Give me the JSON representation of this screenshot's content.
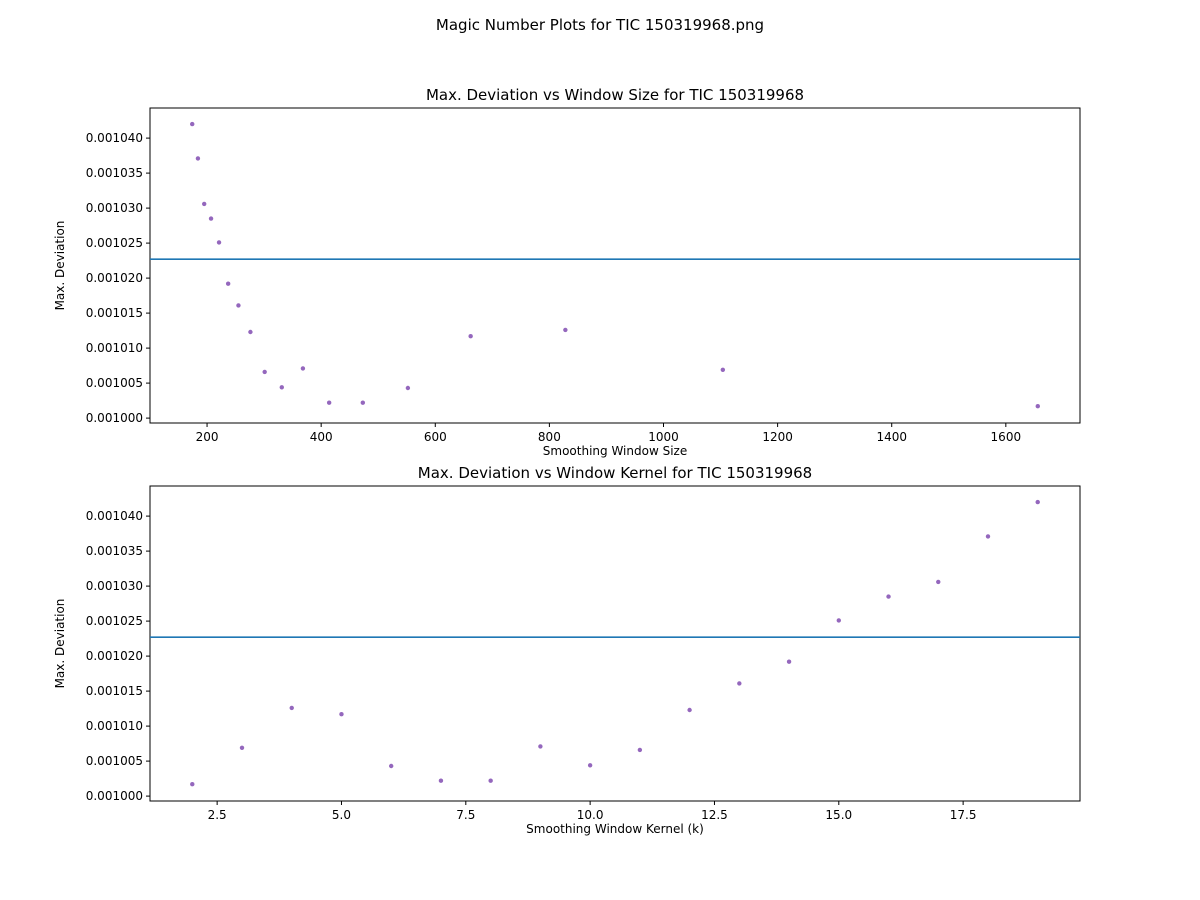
{
  "figure": {
    "suptitle": "Magic Number Plots for TIC 150319968.png"
  },
  "colors": {
    "points": "#9467bd",
    "hline": "#1f77b4",
    "axes": "#000000",
    "background": "#ffffff"
  },
  "chart_data": [
    {
      "type": "scatter",
      "title": "Max. Deviation vs Window Size for TIC 150319968",
      "xlabel": "Smoothing Window Size",
      "ylabel": "Max. Deviation",
      "xlim": [
        100,
        1730
      ],
      "ylim": [
        0.0009993,
        0.0010443
      ],
      "xticks": [
        200,
        400,
        600,
        800,
        1000,
        1200,
        1400,
        1600
      ],
      "xtick_labels": [
        "200",
        "400",
        "600",
        "800",
        "1000",
        "1200",
        "1400",
        "1600"
      ],
      "yticks": [
        0.001,
        0.001005,
        0.00101,
        0.001015,
        0.00102,
        0.001025,
        0.00103,
        0.001035,
        0.00104
      ],
      "ytick_labels": [
        "0.001000",
        "0.001005",
        "0.001010",
        "0.001015",
        "0.001020",
        "0.001025",
        "0.001030",
        "0.001035",
        "0.001040"
      ],
      "grid": false,
      "hline": 0.0010227,
      "points": [
        {
          "x": 174,
          "y": 0.001042
        },
        {
          "x": 184,
          "y": 0.0010371
        },
        {
          "x": 195,
          "y": 0.0010306
        },
        {
          "x": 207,
          "y": 0.0010285
        },
        {
          "x": 221,
          "y": 0.0010251
        },
        {
          "x": 237,
          "y": 0.0010192
        },
        {
          "x": 255,
          "y": 0.0010161
        },
        {
          "x": 276,
          "y": 0.0010123
        },
        {
          "x": 301,
          "y": 0.0010066
        },
        {
          "x": 331,
          "y": 0.0010044
        },
        {
          "x": 368,
          "y": 0.0010071
        },
        {
          "x": 414,
          "y": 0.0010022
        },
        {
          "x": 473,
          "y": 0.0010022
        },
        {
          "x": 552,
          "y": 0.0010043
        },
        {
          "x": 662,
          "y": 0.0010117
        },
        {
          "x": 828,
          "y": 0.0010126
        },
        {
          "x": 1104,
          "y": 0.0010069
        },
        {
          "x": 1656,
          "y": 0.0010017
        }
      ]
    },
    {
      "type": "scatter",
      "title": "Max. Deviation vs Window Kernel for TIC 150319968",
      "xlabel": "Smoothing Window Kernel (k)",
      "ylabel": "Max. Deviation",
      "xlim": [
        1.15,
        19.85
      ],
      "ylim": [
        0.0009993,
        0.0010443
      ],
      "xticks": [
        2.5,
        5.0,
        7.5,
        10.0,
        12.5,
        15.0,
        17.5
      ],
      "xtick_labels": [
        "2.5",
        "5.0",
        "7.5",
        "10.0",
        "12.5",
        "15.0",
        "17.5"
      ],
      "yticks": [
        0.001,
        0.001005,
        0.00101,
        0.001015,
        0.00102,
        0.001025,
        0.00103,
        0.001035,
        0.00104
      ],
      "ytick_labels": [
        "0.001000",
        "0.001005",
        "0.001010",
        "0.001015",
        "0.001020",
        "0.001025",
        "0.001030",
        "0.001035",
        "0.001040"
      ],
      "grid": false,
      "hline": 0.0010227,
      "points": [
        {
          "x": 2,
          "y": 0.0010017
        },
        {
          "x": 3,
          "y": 0.0010069
        },
        {
          "x": 4,
          "y": 0.0010126
        },
        {
          "x": 5,
          "y": 0.0010117
        },
        {
          "x": 6,
          "y": 0.0010043
        },
        {
          "x": 7,
          "y": 0.0010022
        },
        {
          "x": 8,
          "y": 0.0010022
        },
        {
          "x": 9,
          "y": 0.0010071
        },
        {
          "x": 10,
          "y": 0.0010044
        },
        {
          "x": 11,
          "y": 0.0010066
        },
        {
          "x": 12,
          "y": 0.0010123
        },
        {
          "x": 13,
          "y": 0.0010161
        },
        {
          "x": 14,
          "y": 0.0010192
        },
        {
          "x": 15,
          "y": 0.0010251
        },
        {
          "x": 16,
          "y": 0.0010285
        },
        {
          "x": 17,
          "y": 0.0010306
        },
        {
          "x": 18,
          "y": 0.0010371
        },
        {
          "x": 19,
          "y": 0.001042
        }
      ]
    }
  ]
}
